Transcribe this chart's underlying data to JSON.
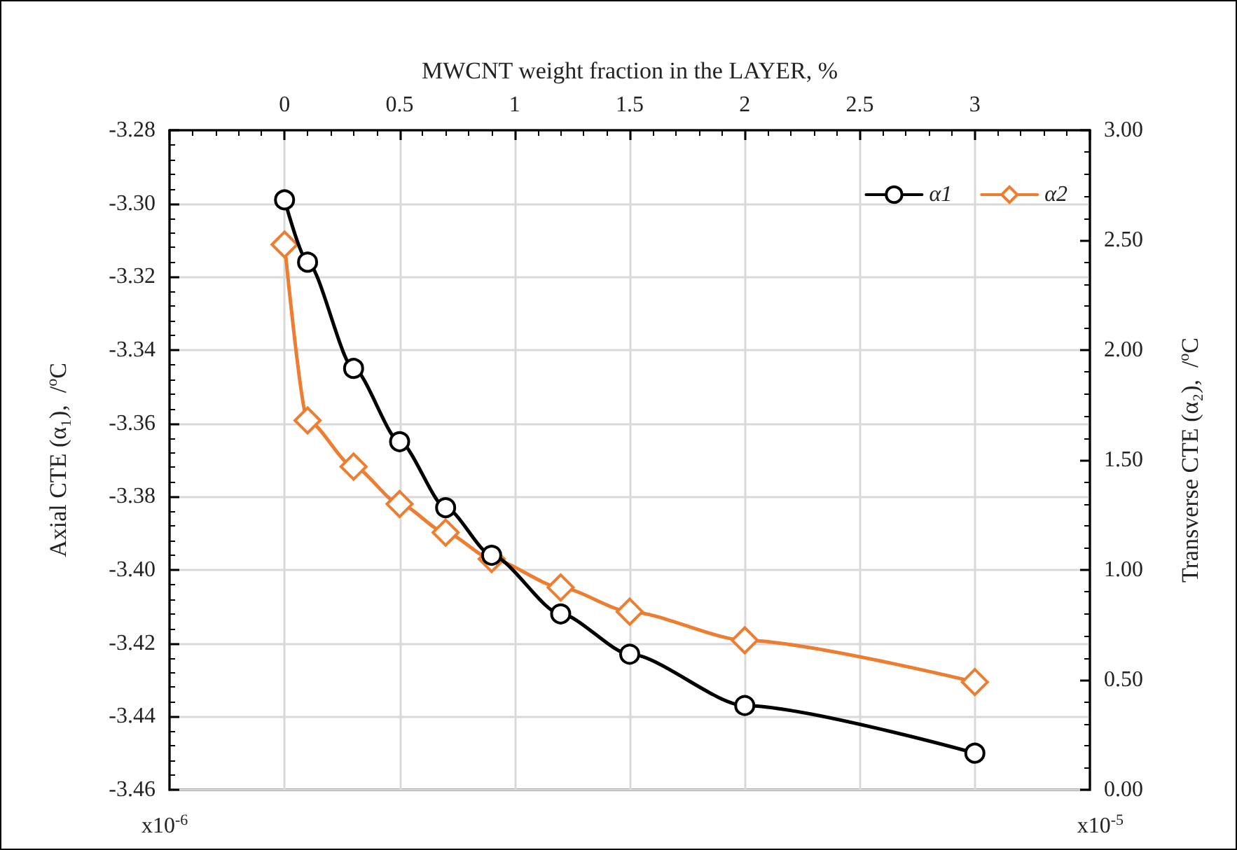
{
  "chart_data": {
    "type": "line",
    "xlabel": "MWCNT weight fraction in the LAYER, %",
    "ylabel": "Axial CTE (α₁),  /$^{o}$C",
    "y2label": "Transverse CTE (α₂),  /$^{o}$C",
    "x": [
      0,
      0.1,
      0.3,
      0.5,
      0.7,
      0.9,
      1.2,
      1.5,
      2,
      3
    ],
    "series": [
      {
        "name": "α1",
        "color": "#000000",
        "marker": "circle",
        "values": [
          -3.299,
          -3.316,
          -3.345,
          -3.365,
          -3.383,
          -3.396,
          -3.412,
          -3.423,
          -3.437,
          -3.45
        ]
      },
      {
        "name": "α2",
        "color": "#ed7d31",
        "marker": "diamond",
        "axis": "y2",
        "values": [
          2.48,
          1.68,
          1.47,
          1.3,
          1.17,
          1.05,
          0.92,
          0.81,
          0.68,
          0.49
        ]
      }
    ],
    "xlim": [
      -0.5,
      3.5
    ],
    "xticks": [
      {
        "value": -0.5,
        "label": null
      },
      0,
      0.5,
      1,
      1.5,
      2,
      2.5,
      3,
      {
        "value": 3.5,
        "label": null
      }
    ],
    "ylim": [
      -3.46,
      -3.28
    ],
    "yticks": [
      {
        "value": -3.46,
        "label": "-3.46"
      },
      {
        "value": -3.44,
        "label": "-3.44"
      },
      {
        "value": -3.42,
        "label": "-3.42"
      },
      {
        "value": -3.4,
        "label": "-3.40"
      },
      {
        "value": -3.38,
        "label": "-3.38"
      },
      {
        "value": -3.36,
        "label": "-3.36"
      },
      {
        "value": -3.34,
        "label": "-3.34"
      },
      {
        "value": -3.32,
        "label": "-3.32"
      },
      {
        "value": -3.3,
        "label": "-3.30"
      },
      {
        "value": -3.28,
        "label": "-3.28"
      }
    ],
    "y2lim": [
      0,
      3
    ],
    "y2ticks": [
      {
        "value": 0,
        "label": "0.00"
      },
      {
        "value": 0.5,
        "label": "0.50"
      },
      {
        "value": 1,
        "label": "1.00"
      },
      {
        "value": 1.5,
        "label": "1.50"
      },
      {
        "value": 2,
        "label": "2.00"
      },
      {
        "value": 2.5,
        "label": "2.50"
      },
      {
        "value": 3,
        "label": "3.00"
      }
    ],
    "annotations": [
      "x10$^{-6}$",
      "x10$^{-5}$"
    ],
    "grid": true,
    "legend": "top right",
    "line_style": "solid"
  }
}
